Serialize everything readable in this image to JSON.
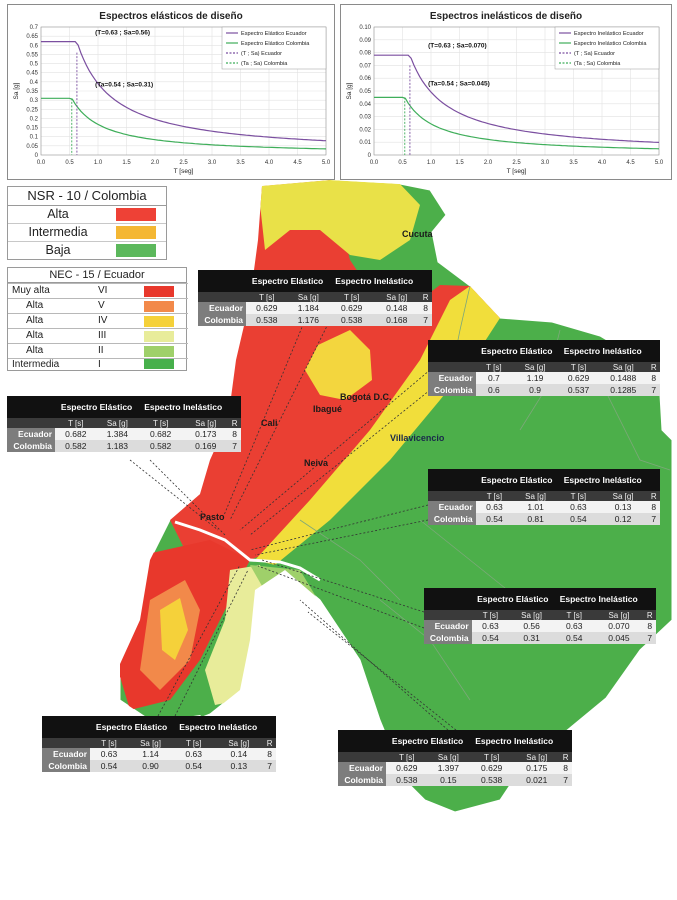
{
  "charts": [
    {
      "title": "Espectros elásticos de diseño",
      "chart_data": {
        "type": "line",
        "title": "Espectros elásticos de diseño",
        "xlabel": "T [seg]",
        "ylabel": "Sa [g]",
        "xlim": [
          0.0,
          5.0
        ],
        "ylim": [
          0.0,
          0.7
        ],
        "xticks": [
          "0.0",
          "0.5",
          "1.0",
          "1.5",
          "2.0",
          "2.5",
          "3.0",
          "3.5",
          "4.0",
          "4.5",
          "5.0"
        ],
        "yticks": [
          "0",
          "0.05",
          "0.1",
          "0.15",
          "0.2",
          "0.25",
          "0.3",
          "0.35",
          "0.4",
          "0.45",
          "0.5",
          "0.55",
          "0.6",
          "0.65",
          "0.7"
        ],
        "series": [
          {
            "name": "Espectro Elástico Ecuador",
            "color": "#7b4fa0",
            "plateau": 0.62,
            "T0": 0.0,
            "Tc": 0.63,
            "decay": 1.0
          },
          {
            "name": "Espectro Elástico Colombia",
            "color": "#3fae5a",
            "plateau": 0.31,
            "T0": 0.0,
            "Tc": 0.54,
            "decay": 1.0
          }
        ],
        "markers": [
          {
            "name": "(T ; Sa) Ecuador",
            "x": 0.63,
            "y": 0.56,
            "color": "#7b4fa0"
          },
          {
            "name": "(Ta ; Sa) Colombia",
            "x": 0.54,
            "y": 0.31,
            "color": "#3fae5a"
          }
        ],
        "annotations": [
          "(T=0.63 ; Sa=0.56)",
          "(Ta=0.54 ; Sa=0.31)"
        ]
      }
    },
    {
      "title": "Espectros inelásticos de diseño",
      "chart_data": {
        "type": "line",
        "title": "Espectros inelásticos de diseño",
        "xlabel": "T [seg]",
        "ylabel": "Sa [g]",
        "xlim": [
          0.0,
          5.0
        ],
        "ylim": [
          0.0,
          0.1
        ],
        "xticks": [
          "0.0",
          "0.5",
          "1.0",
          "1.5",
          "2.0",
          "2.5",
          "3.0",
          "3.5",
          "4.0",
          "4.5",
          "5.0"
        ],
        "yticks": [
          "0",
          "0.01",
          "0.02",
          "0.03",
          "0.04",
          "0.05",
          "0.06",
          "0.07",
          "0.08",
          "0.09",
          "0.10"
        ],
        "series": [
          {
            "name": "Espectro Inelástico Ecuador",
            "color": "#7b4fa0",
            "plateau": 0.078,
            "T0": 0.0,
            "Tc": 0.63,
            "decay": 1.0
          },
          {
            "name": "Espectro Inelástico Colombia",
            "color": "#3fae5a",
            "plateau": 0.045,
            "T0": 0.0,
            "Tc": 0.54,
            "decay": 1.0
          }
        ],
        "markers": [
          {
            "name": "(T ; Sa) Ecuador",
            "x": 0.63,
            "y": 0.07,
            "color": "#7b4fa0"
          },
          {
            "name": "(Ta ; Sa) Colombia",
            "x": 0.54,
            "y": 0.045,
            "color": "#3fae5a"
          }
        ],
        "annotations": [
          "(T=0.63 ; Sa=0.070)",
          "(Ta=0.54 ; Sa=0.045)"
        ]
      }
    }
  ],
  "legend_nsr": {
    "title": "NSR - 10 / Colombia",
    "rows": [
      {
        "label": "Alta",
        "color": "#ee4136"
      },
      {
        "label": "Intermedia",
        "color": "#f4b733"
      },
      {
        "label": "Baja",
        "color": "#5cb85c"
      }
    ]
  },
  "legend_nec": {
    "title": "NEC - 15 / Ecuador",
    "rows": [
      {
        "label": "Muy alta",
        "zone": "VI",
        "color": "#e8382c"
      },
      {
        "label": "Alta",
        "zone": "V",
        "color": "#f2894a"
      },
      {
        "label": "Alta",
        "zone": "IV",
        "color": "#f5d13a"
      },
      {
        "label": "Alta",
        "zone": "III",
        "color": "#e8ec9a"
      },
      {
        "label": "Alta",
        "zone": "II",
        "color": "#9fd06a"
      },
      {
        "label": "Intermedia",
        "zone": "I",
        "color": "#47b04b"
      }
    ]
  },
  "cities": [
    "Cucuta",
    "Bogotá D.C.",
    "Ibagué",
    "Cali",
    "Villavicencio",
    "Neiva",
    "Pasto"
  ],
  "table_headers": {
    "elastic": "Espectro Elástico",
    "inelastic": "Espectro Inelástico",
    "t": "T [s]",
    "sa": "Sa [g]",
    "r": "R"
  },
  "tables": [
    {
      "rows": [
        {
          "name": "Ecuador",
          "t1": "0.629",
          "sa1": "1.184",
          "t2": "0.629",
          "sa2": "0.148",
          "r": "8"
        },
        {
          "name": "Colombia",
          "t1": "0.538",
          "sa1": "1.176",
          "t2": "0.538",
          "sa2": "0.168",
          "r": "7"
        }
      ]
    },
    {
      "rows": [
        {
          "name": "Ecuador",
          "t1": "0.7",
          "sa1": "1.19",
          "t2": "0.629",
          "sa2": "0.1488",
          "r": "8"
        },
        {
          "name": "Colombia",
          "t1": "0.6",
          "sa1": "0.9",
          "t2": "0.537",
          "sa2": "0.1285",
          "r": "7"
        }
      ]
    },
    {
      "rows": [
        {
          "name": "Ecuador",
          "t1": "0.682",
          "sa1": "1.384",
          "t2": "0.682",
          "sa2": "0.173",
          "r": "8"
        },
        {
          "name": "Colombia",
          "t1": "0.582",
          "sa1": "1.183",
          "t2": "0.582",
          "sa2": "0.169",
          "r": "7"
        }
      ]
    },
    {
      "rows": [
        {
          "name": "Ecuador",
          "t1": "0.63",
          "sa1": "1.01",
          "t2": "0.63",
          "sa2": "0.13",
          "r": "8"
        },
        {
          "name": "Colombia",
          "t1": "0.54",
          "sa1": "0.81",
          "t2": "0.54",
          "sa2": "0.12",
          "r": "7"
        }
      ]
    },
    {
      "rows": [
        {
          "name": "Ecuador",
          "t1": "0.63",
          "sa1": "0.56",
          "t2": "0.63",
          "sa2": "0.070",
          "r": "8"
        },
        {
          "name": "Colombia",
          "t1": "0.54",
          "sa1": "0.31",
          "t2": "0.54",
          "sa2": "0.045",
          "r": "7"
        }
      ]
    },
    {
      "rows": [
        {
          "name": "Ecuador",
          "t1": "0.63",
          "sa1": "1.14",
          "t2": "0.63",
          "sa2": "0.14",
          "r": "8"
        },
        {
          "name": "Colombia",
          "t1": "0.54",
          "sa1": "0.90",
          "t2": "0.54",
          "sa2": "0.13",
          "r": "7"
        }
      ]
    },
    {
      "rows": [
        {
          "name": "Ecuador",
          "t1": "0.629",
          "sa1": "1.397",
          "t2": "0.629",
          "sa2": "0.175",
          "r": "8"
        },
        {
          "name": "Colombia",
          "t1": "0.538",
          "sa1": "0.15",
          "t2": "0.538",
          "sa2": "0.021",
          "r": "7"
        }
      ]
    }
  ]
}
